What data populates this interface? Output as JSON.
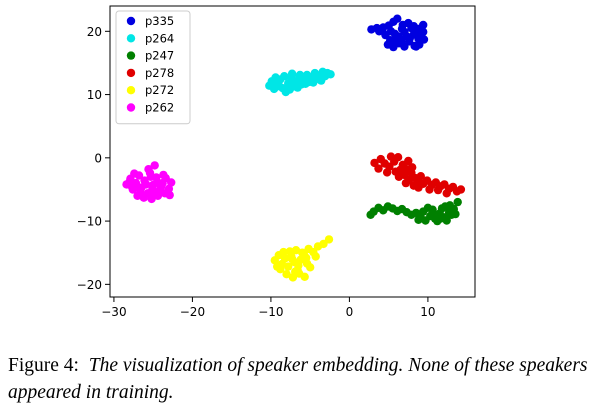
{
  "chart_data": {
    "type": "scatter",
    "title": "",
    "xlabel": "",
    "ylabel": "",
    "xlim": [
      -30.5,
      16
    ],
    "ylim": [
      -22,
      24
    ],
    "xticks": [
      -30,
      -20,
      -10,
      0,
      10
    ],
    "yticks": [
      -20,
      -10,
      0,
      10,
      20
    ],
    "xtick_labels": [
      "−30",
      "−20",
      "−10",
      "0",
      "10"
    ],
    "ytick_labels": [
      "−20",
      "−10",
      "0",
      "10",
      "20"
    ],
    "legend_position": "top-left",
    "series": [
      {
        "name": "p335",
        "color": "#0000e0",
        "points": [
          [
            2.8,
            20.3
          ],
          [
            3.5,
            20.5
          ],
          [
            4.2,
            20.1
          ],
          [
            5.0,
            20.9
          ],
          [
            5.6,
            21.5
          ],
          [
            6.1,
            22.0
          ],
          [
            6.8,
            21.0
          ],
          [
            7.5,
            21.3
          ],
          [
            8.2,
            20.8
          ],
          [
            8.9,
            20.4
          ],
          [
            9.4,
            21.0
          ],
          [
            4.6,
            19.4
          ],
          [
            5.2,
            18.6
          ],
          [
            5.8,
            19.6
          ],
          [
            6.4,
            18.9
          ],
          [
            7.0,
            19.9
          ],
          [
            7.6,
            18.4
          ],
          [
            8.2,
            19.5
          ],
          [
            8.8,
            18.8
          ],
          [
            9.4,
            19.9
          ],
          [
            4.9,
            17.9
          ],
          [
            5.6,
            17.5
          ],
          [
            6.3,
            18.1
          ],
          [
            7.0,
            17.6
          ],
          [
            7.7,
            18.9
          ],
          [
            8.3,
            17.7
          ],
          [
            8.9,
            17.9
          ],
          [
            9.5,
            18.7
          ],
          [
            6.7,
            20.4
          ],
          [
            5.3,
            20.0
          ],
          [
            8.6,
            19.9
          ],
          [
            7.3,
            19.2
          ],
          [
            3.8,
            20.0
          ],
          [
            9.1,
            19.4
          ],
          [
            6.2,
            19.2
          ],
          [
            7.9,
            20.5
          ],
          [
            5.9,
            18.5
          ],
          [
            4.3,
            20.6
          ],
          [
            8.5,
            17.6
          ],
          [
            6.6,
            18.4
          ]
        ]
      },
      {
        "name": "p264",
        "color": "#00e6e6",
        "points": [
          [
            -10.2,
            11.4
          ],
          [
            -9.9,
            12.1
          ],
          [
            -9.6,
            10.9
          ],
          [
            -9.2,
            11.7
          ],
          [
            -8.8,
            12.4
          ],
          [
            -8.5,
            11.0
          ],
          [
            -8.1,
            10.4
          ],
          [
            -7.8,
            11.8
          ],
          [
            -7.4,
            12.6
          ],
          [
            -7.1,
            11.3
          ],
          [
            -6.8,
            12.0
          ],
          [
            -6.4,
            12.8
          ],
          [
            -6.1,
            11.6
          ],
          [
            -5.8,
            12.3
          ],
          [
            -5.4,
            13.1
          ],
          [
            -5.1,
            12.0
          ],
          [
            -4.8,
            12.7
          ],
          [
            -4.4,
            13.4
          ],
          [
            -4.1,
            12.5
          ],
          [
            -3.8,
            13.0
          ],
          [
            -3.4,
            13.6
          ],
          [
            -3.1,
            12.9
          ],
          [
            -2.8,
            13.4
          ],
          [
            -2.4,
            13.2
          ],
          [
            -9.4,
            12.7
          ],
          [
            -8.3,
            12.9
          ],
          [
            -7.6,
            10.8
          ],
          [
            -6.6,
            11.1
          ],
          [
            -5.6,
            11.7
          ],
          [
            -4.6,
            11.9
          ],
          [
            -3.6,
            12.2
          ],
          [
            -7.3,
            13.3
          ],
          [
            -8.9,
            11.3
          ],
          [
            -6.3,
            13.1
          ]
        ]
      },
      {
        "name": "p247",
        "color": "#008000",
        "points": [
          [
            2.7,
            -9.0
          ],
          [
            3.1,
            -8.5
          ],
          [
            3.7,
            -7.9
          ],
          [
            4.3,
            -8.3
          ],
          [
            4.9,
            -7.7
          ],
          [
            5.5,
            -8.0
          ],
          [
            6.1,
            -8.4
          ],
          [
            6.7,
            -8.1
          ],
          [
            7.3,
            -8.6
          ],
          [
            7.9,
            -9.0
          ],
          [
            8.5,
            -8.7
          ],
          [
            9.1,
            -9.5
          ],
          [
            9.7,
            -9.9
          ],
          [
            10.3,
            -9.2
          ],
          [
            10.9,
            -9.6
          ],
          [
            11.5,
            -8.8
          ],
          [
            12.1,
            -9.4
          ],
          [
            12.7,
            -8.6
          ],
          [
            13.3,
            -8.1
          ],
          [
            13.8,
            -7.0
          ],
          [
            10.6,
            -8.2
          ],
          [
            11.2,
            -10.0
          ],
          [
            11.8,
            -8.0
          ],
          [
            12.4,
            -9.9
          ],
          [
            13.0,
            -9.0
          ],
          [
            9.4,
            -8.5
          ],
          [
            10.0,
            -7.9
          ],
          [
            12.2,
            -7.7
          ],
          [
            11.0,
            -9.1
          ],
          [
            13.5,
            -8.9
          ],
          [
            8.8,
            -9.8
          ],
          [
            11.6,
            -9.6
          ],
          [
            12.8,
            -7.5
          ]
        ]
      },
      {
        "name": "p278",
        "color": "#e00000",
        "points": [
          [
            4.0,
            -0.2
          ],
          [
            4.5,
            -0.9
          ],
          [
            5.1,
            -1.4
          ],
          [
            5.7,
            -0.6
          ],
          [
            6.2,
            0.1
          ],
          [
            6.8,
            -1.1
          ],
          [
            7.3,
            -1.8
          ],
          [
            7.9,
            -2.4
          ],
          [
            7.0,
            -2.7
          ],
          [
            6.5,
            -1.9
          ],
          [
            5.9,
            -2.2
          ],
          [
            8.4,
            -3.2
          ],
          [
            8.9,
            -3.9
          ],
          [
            7.6,
            -3.5
          ],
          [
            8.2,
            -4.4
          ],
          [
            8.8,
            -4.7
          ],
          [
            9.4,
            -4.1
          ],
          [
            9.9,
            -3.6
          ],
          [
            10.5,
            -4.3
          ],
          [
            11.0,
            -3.9
          ],
          [
            11.6,
            -4.5
          ],
          [
            12.1,
            -4.2
          ],
          [
            12.7,
            -4.9
          ],
          [
            13.2,
            -4.6
          ],
          [
            13.7,
            -5.3
          ],
          [
            14.2,
            -5.0
          ],
          [
            3.2,
            -0.8
          ],
          [
            3.7,
            -1.7
          ],
          [
            4.8,
            -2.3
          ],
          [
            5.3,
            0.2
          ],
          [
            7.5,
            -0.5
          ],
          [
            9.1,
            -2.9
          ],
          [
            10.2,
            -5.0
          ],
          [
            6.3,
            -3.0
          ],
          [
            8.0,
            -1.5
          ],
          [
            12.4,
            -5.6
          ],
          [
            11.3,
            -5.1
          ],
          [
            7.2,
            -4.0
          ]
        ]
      },
      {
        "name": "p272",
        "color": "#ffff00",
        "points": [
          [
            -9.5,
            -16.2
          ],
          [
            -9.0,
            -15.4
          ],
          [
            -8.6,
            -16.8
          ],
          [
            -8.2,
            -15.9
          ],
          [
            -7.8,
            -17.2
          ],
          [
            -7.4,
            -15.6
          ],
          [
            -7.0,
            -16.5
          ],
          [
            -6.6,
            -17.7
          ],
          [
            -6.2,
            -16.1
          ],
          [
            -5.8,
            -15.3
          ],
          [
            -5.4,
            -16.7
          ],
          [
            -8.8,
            -17.6
          ],
          [
            -8.0,
            -18.4
          ],
          [
            -7.2,
            -18.9
          ],
          [
            -6.4,
            -18.3
          ],
          [
            -5.7,
            -18.8
          ],
          [
            -7.6,
            -14.8
          ],
          [
            -6.8,
            -14.6
          ],
          [
            -6.0,
            -15.0
          ],
          [
            -5.2,
            -14.4
          ],
          [
            -4.6,
            -14.9
          ],
          [
            -4.0,
            -14.0
          ],
          [
            -3.3,
            -13.6
          ],
          [
            -2.6,
            -12.9
          ],
          [
            -8.4,
            -14.9
          ],
          [
            -5.0,
            -17.3
          ],
          [
            -7.3,
            -16.0
          ],
          [
            -6.5,
            -17.0
          ],
          [
            -9.2,
            -17.2
          ],
          [
            -5.5,
            -15.8
          ],
          [
            -6.9,
            -18.0
          ],
          [
            -4.3,
            -15.6
          ]
        ]
      },
      {
        "name": "p262",
        "color": "#ff00ff",
        "points": [
          [
            -28.4,
            -4.2
          ],
          [
            -27.9,
            -3.3
          ],
          [
            -27.6,
            -5.0
          ],
          [
            -27.2,
            -4.0
          ],
          [
            -26.8,
            -2.8
          ],
          [
            -26.5,
            -4.7
          ],
          [
            -26.1,
            -3.6
          ],
          [
            -25.7,
            -5.6
          ],
          [
            -25.4,
            -2.4
          ],
          [
            -25.0,
            -4.3
          ],
          [
            -24.6,
            -3.1
          ],
          [
            -24.2,
            -5.2
          ],
          [
            -23.8,
            -4.0
          ],
          [
            -23.4,
            -3.2
          ],
          [
            -23.0,
            -4.9
          ],
          [
            -22.7,
            -3.9
          ],
          [
            -27.0,
            -6.0
          ],
          [
            -26.2,
            -6.3
          ],
          [
            -25.2,
            -6.5
          ],
          [
            -24.4,
            -6.0
          ],
          [
            -25.6,
            -1.8
          ],
          [
            -24.8,
            -1.2
          ],
          [
            -26.6,
            -5.6
          ],
          [
            -24.0,
            -4.6
          ],
          [
            -23.5,
            -5.6
          ],
          [
            -28.0,
            -3.8
          ],
          [
            -25.9,
            -4.2
          ],
          [
            -24.9,
            -5.5
          ],
          [
            -27.4,
            -2.5
          ],
          [
            -22.9,
            -5.9
          ],
          [
            -26.9,
            -4.8
          ],
          [
            -25.3,
            -3.0
          ],
          [
            -24.5,
            -3.8
          ],
          [
            -23.7,
            -2.7
          ],
          [
            -27.7,
            -4.6
          ],
          [
            -25.1,
            -5.0
          ]
        ]
      }
    ]
  },
  "caption": {
    "label": "Figure 4:",
    "text": "The visualization of speaker embedding.  None of these speakers appeared in training."
  }
}
